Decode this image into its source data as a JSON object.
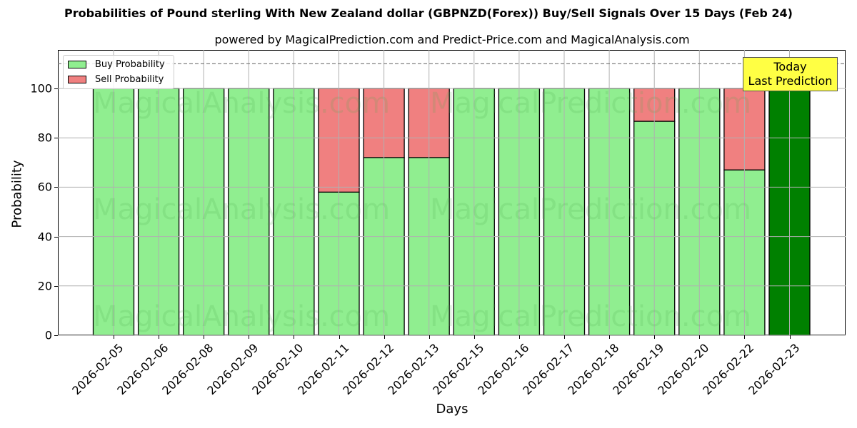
{
  "title": "Probabilities of Pound sterling With New Zealand dollar (GBPNZD(Forex)) Buy/Sell Signals Over 15 Days (Feb 24)",
  "subtitle": "powered by MagicalPrediction.com and Predict-Price.com and MagicalAnalysis.com",
  "xlabel": "Days",
  "ylabel": "Probability",
  "yticks": [
    "0",
    "20",
    "40",
    "60",
    "80",
    "100"
  ],
  "legend": {
    "buy_label": "Buy Probability",
    "sell_label": "Sell Probability"
  },
  "annotation": {
    "line1": "Today",
    "line2": "Last Prediction"
  },
  "watermarks": [
    "MagicalAnalysis.com",
    "MagicalPrediction.com"
  ],
  "colors": {
    "buy": "#90ee90",
    "sell": "#f08080",
    "today": "#008000",
    "annotation_bg": "#ffff44",
    "threshold_line": "#808080"
  },
  "chart_data": {
    "type": "bar",
    "stacked": true,
    "title": "Probabilities of Pound sterling With New Zealand dollar (GBPNZD(Forex)) Buy/Sell Signals Over 15 Days (Feb 24)",
    "subtitle": "powered by MagicalPrediction.com and Predict-Price.com and MagicalAnalysis.com",
    "xlabel": "Days",
    "ylabel": "Probability",
    "ylim": [
      0,
      115
    ],
    "yticks": [
      0,
      20,
      40,
      60,
      80,
      100
    ],
    "grid": true,
    "legend_position": "upper left",
    "threshold_line": 110,
    "categories": [
      "2026-02-05",
      "2026-02-06",
      "2026-02-08",
      "2026-02-09",
      "2026-02-10",
      "2026-02-11",
      "2026-02-12",
      "2026-02-13",
      "2026-02-15",
      "2026-02-16",
      "2026-02-17",
      "2026-02-18",
      "2026-02-19",
      "2026-02-20",
      "2026-02-22",
      "2026-02-23"
    ],
    "series": [
      {
        "name": "Buy Probability",
        "values": [
          100,
          100,
          100,
          100,
          100,
          58,
          72,
          72,
          100,
          100,
          100,
          100,
          86.7,
          100,
          67,
          100
        ]
      },
      {
        "name": "Sell Probability",
        "values": [
          0,
          0,
          0,
          0,
          0,
          42,
          28,
          28,
          0,
          0,
          0,
          0,
          13.3,
          0,
          33,
          0
        ]
      }
    ],
    "highlight": {
      "category": "2026-02-23",
      "label": "Today Last Prediction"
    }
  }
}
